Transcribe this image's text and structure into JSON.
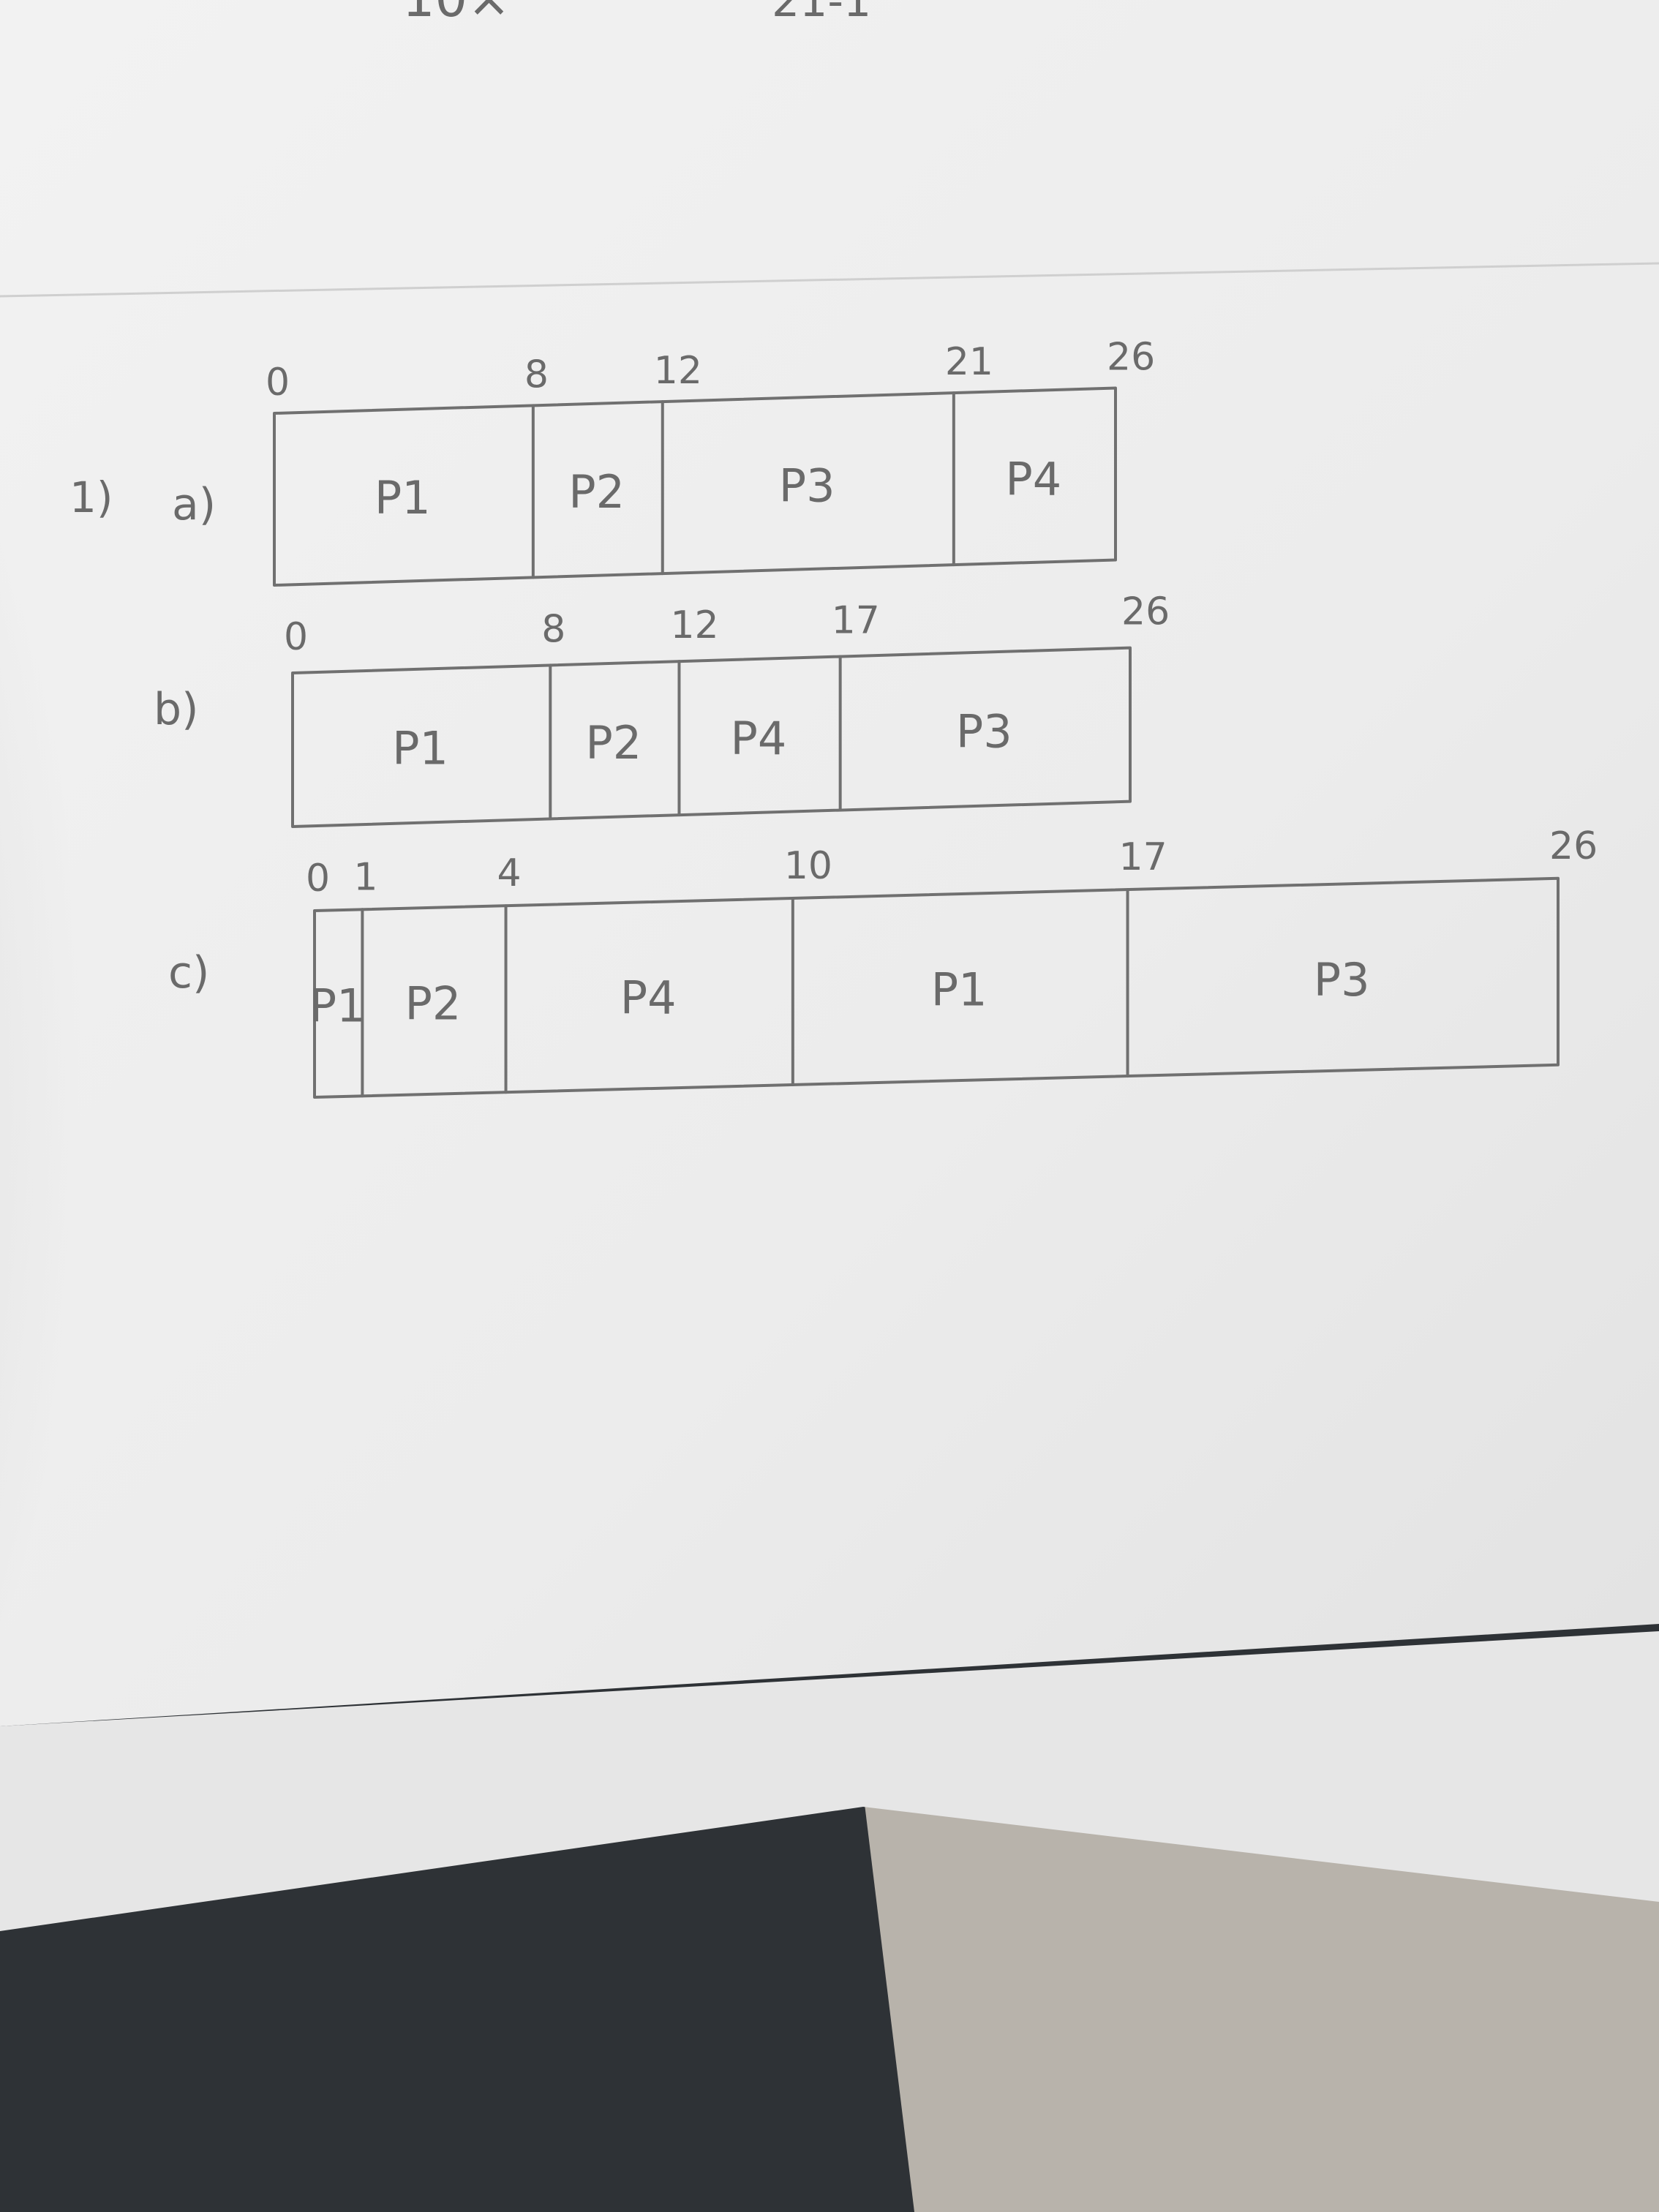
{
  "question_number": "1)",
  "top_fragment_left": "10×",
  "top_fragment_right": "21-1",
  "colors": {
    "paper": "#efefef",
    "paper_shadow": "#dcdcdc",
    "ink": "#707070",
    "table": "#b8b3ab",
    "dark_fabric": "#2e3236"
  },
  "charts": [
    {
      "label": "a)",
      "segments": [
        {
          "name": "P1",
          "start": 0,
          "end": 8
        },
        {
          "name": "P2",
          "start": 8,
          "end": 12
        },
        {
          "name": "P3",
          "start": 12,
          "end": 21
        },
        {
          "name": "P4",
          "start": 21,
          "end": 26
        }
      ]
    },
    {
      "label": "b)",
      "segments": [
        {
          "name": "P1",
          "start": 0,
          "end": 8
        },
        {
          "name": "P2",
          "start": 8,
          "end": 12
        },
        {
          "name": "P4",
          "start": 12,
          "end": 17
        },
        {
          "name": "P3",
          "start": 17,
          "end": 26
        }
      ]
    },
    {
      "label": "c)",
      "segments": [
        {
          "name": "P1",
          "start": 0,
          "end": 1
        },
        {
          "name": "P2",
          "start": 1,
          "end": 4
        },
        {
          "name": "P4",
          "start": 4,
          "end": 10
        },
        {
          "name": "P1",
          "start": 10,
          "end": 17
        },
        {
          "name": "P3",
          "start": 17,
          "end": 26
        }
      ]
    }
  ]
}
